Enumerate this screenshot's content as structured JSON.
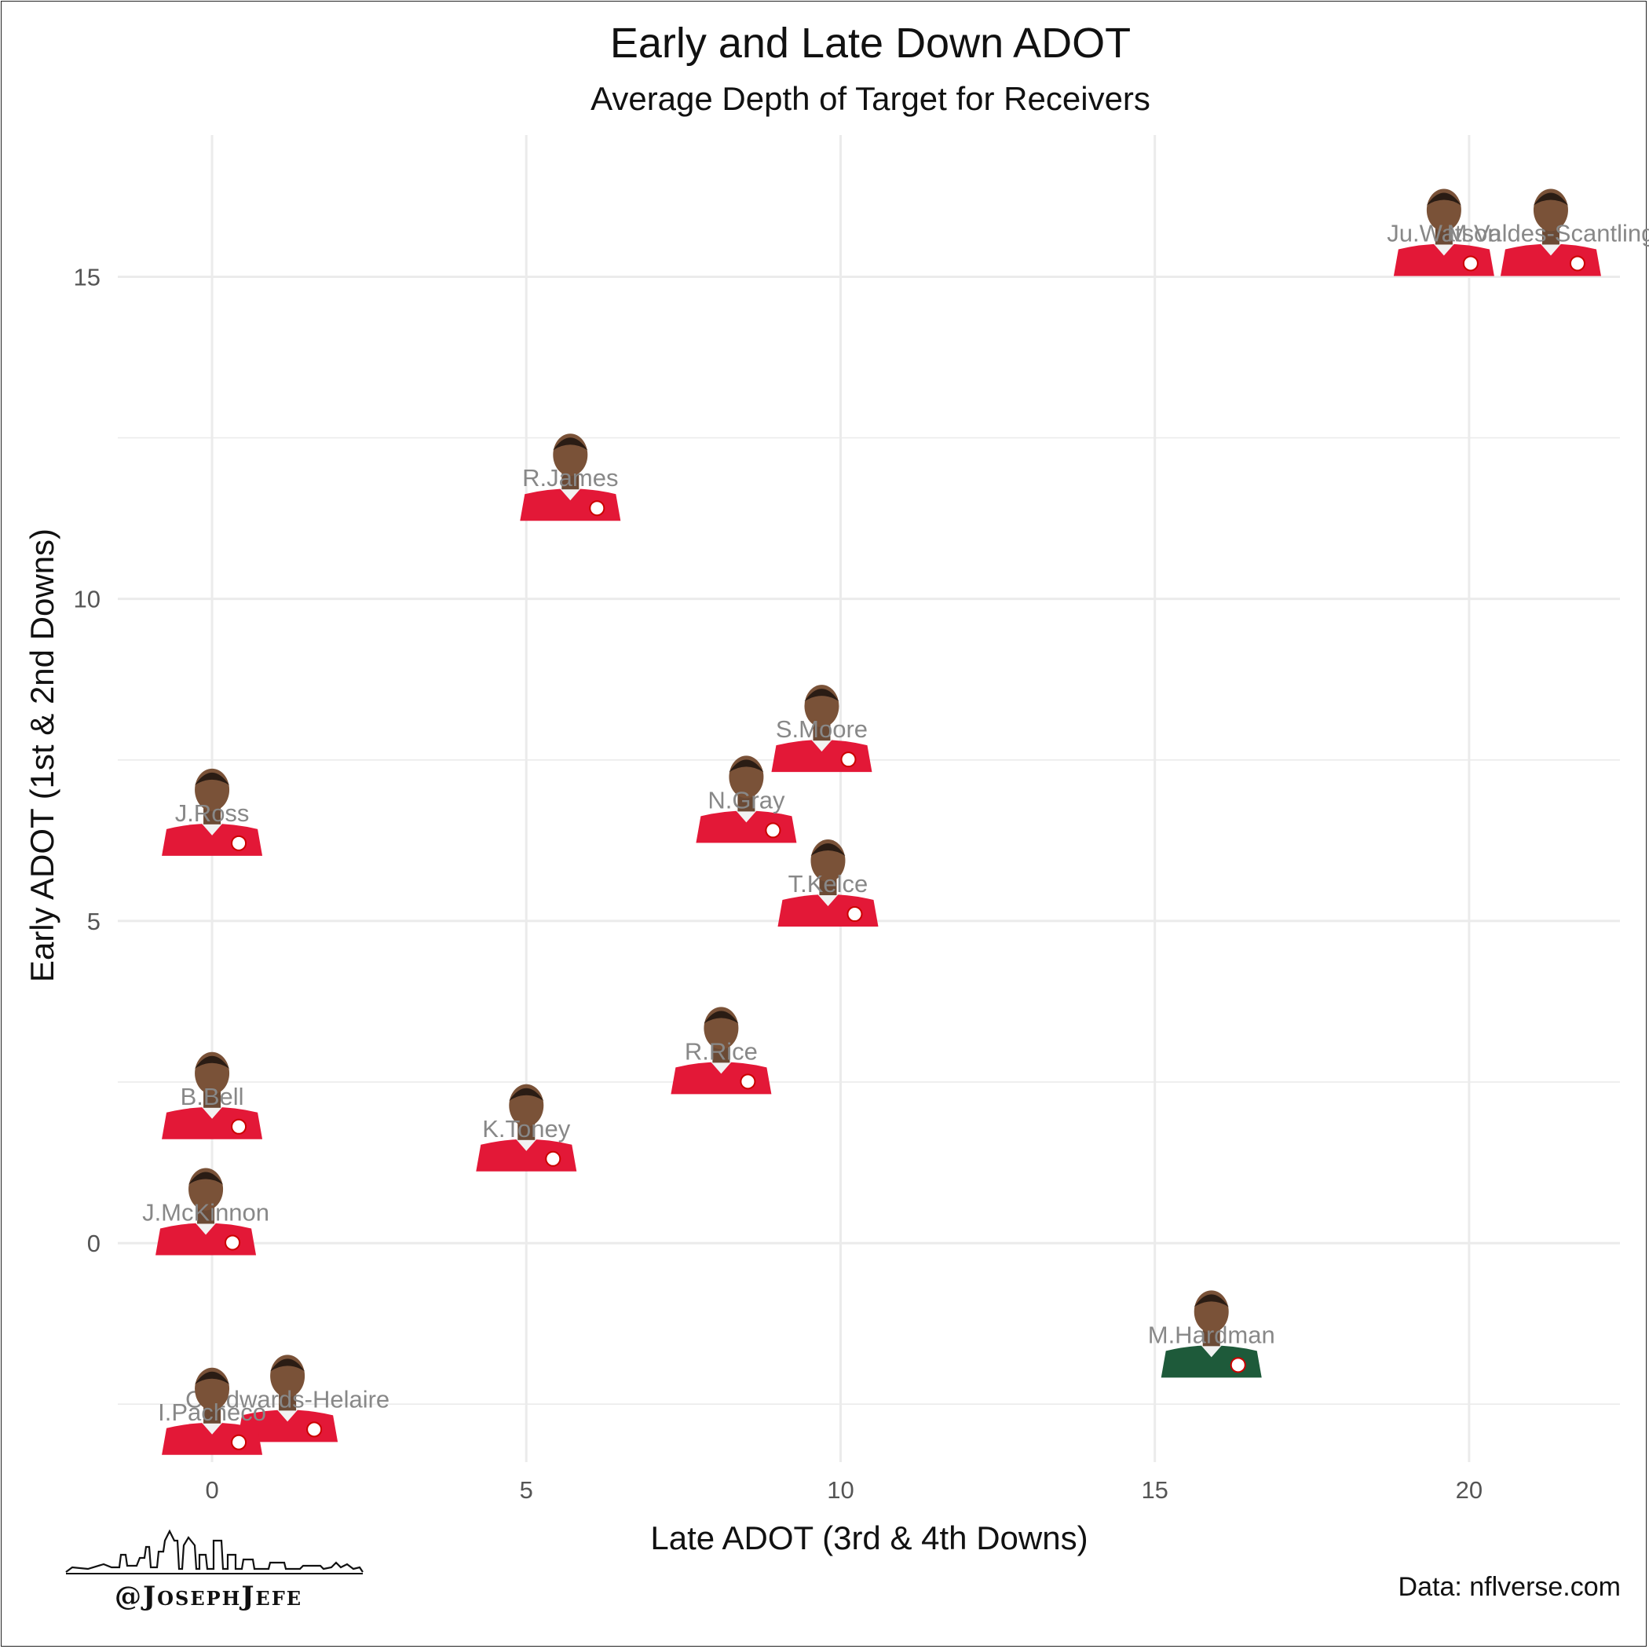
{
  "title": "Early and Late Down ADOT",
  "subtitle": "Average Depth of Target for Receivers",
  "caption": "Data: nflverse.com",
  "credit": "@JosephJefe",
  "colors": {
    "chiefs_jersey": "#e31837",
    "jets_jersey": "#1e5a3a",
    "grid": "#ebebeb",
    "label": "#888888"
  },
  "chart_data": {
    "type": "scatter",
    "title": "Early and Late Down ADOT",
    "subtitle": "Average Depth of Target for Receivers",
    "xlabel": "Late ADOT (3rd & 4th Downs)",
    "ylabel": "Early ADOT (1st & 2nd Downs)",
    "xlim": [
      -1.5,
      22.4
    ],
    "ylim": [
      -3.4,
      17.2
    ],
    "x_ticks": [
      0,
      5,
      10,
      15,
      20
    ],
    "y_ticks": [
      0,
      5,
      10,
      15
    ],
    "grid": true,
    "points": [
      {
        "label": "Ju.Watson",
        "x": 19.6,
        "y": 15.5,
        "team": "KC"
      },
      {
        "label": "M.Valdes-Scantling",
        "x": 21.3,
        "y": 15.5,
        "team": "KC"
      },
      {
        "label": "R.James",
        "x": 5.7,
        "y": 11.7,
        "team": "KC"
      },
      {
        "label": "S.Moore",
        "x": 9.7,
        "y": 7.8,
        "team": "KC"
      },
      {
        "label": "N.Gray",
        "x": 8.5,
        "y": 6.7,
        "team": "KC"
      },
      {
        "label": "J.Ross",
        "x": 0.0,
        "y": 6.5,
        "team": "KC"
      },
      {
        "label": "T.Kelce",
        "x": 9.8,
        "y": 5.4,
        "team": "KC"
      },
      {
        "label": "R.Rice",
        "x": 8.1,
        "y": 2.8,
        "team": "KC"
      },
      {
        "label": "B.Bell",
        "x": 0.0,
        "y": 2.1,
        "team": "KC"
      },
      {
        "label": "K.Toney",
        "x": 5.0,
        "y": 1.6,
        "team": "KC"
      },
      {
        "label": "J.McKinnon",
        "x": -0.1,
        "y": 0.3,
        "team": "KC"
      },
      {
        "label": "M.Hardman",
        "x": 15.9,
        "y": -1.6,
        "team": "NYJ"
      },
      {
        "label": "C.Edwards-Helaire",
        "x": 1.2,
        "y": -2.6,
        "team": "KC"
      },
      {
        "label": "I.Pacheco",
        "x": 0.0,
        "y": -2.8,
        "team": "KC"
      }
    ]
  }
}
